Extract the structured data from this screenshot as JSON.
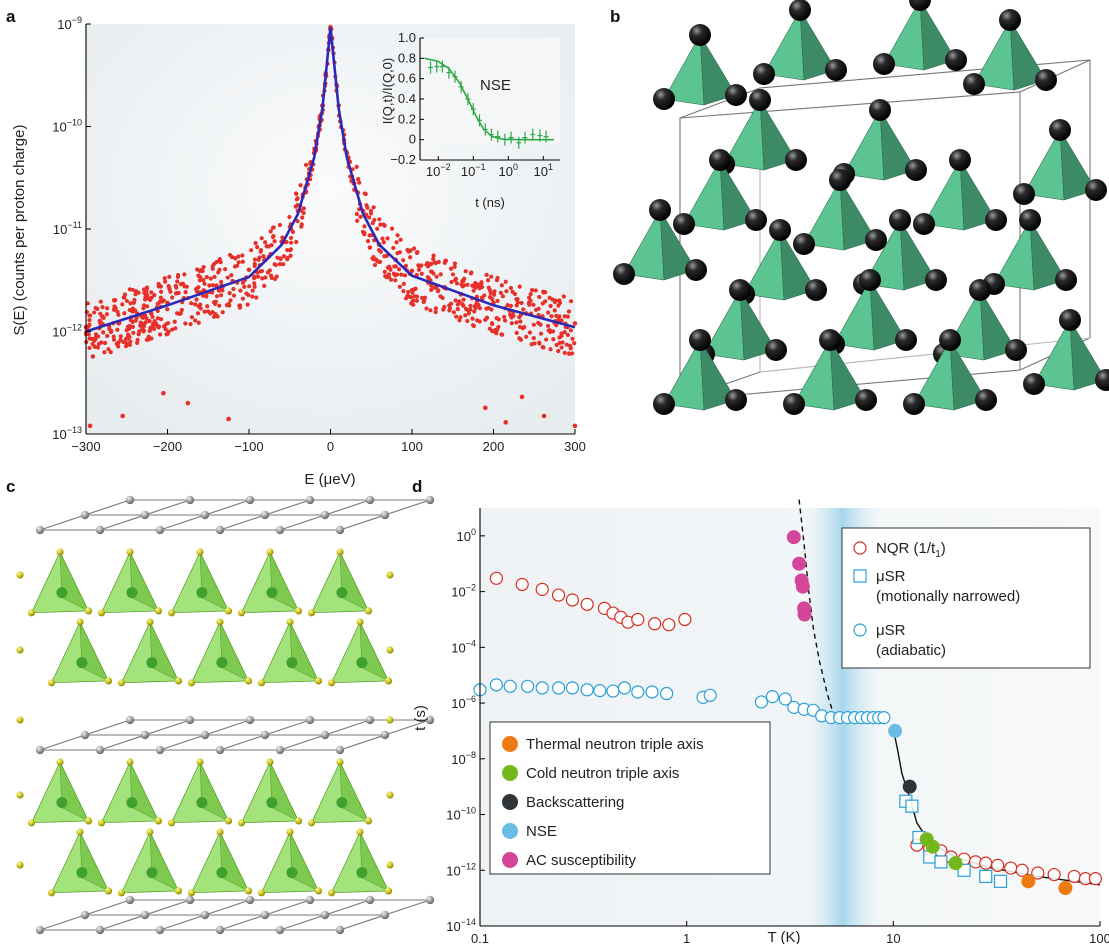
{
  "panels": {
    "a": {
      "letter": "a"
    },
    "b": {
      "letter": "b"
    },
    "c": {
      "letter": "c"
    },
    "d": {
      "letter": "d"
    }
  },
  "colors": {
    "data_red": "#e8302a",
    "fit_blue": "#2a2ab8",
    "nse_green": "#2fa84a",
    "tetra_green": "#5cc490",
    "tetra_dark": "#3d8a67",
    "tetra_lime": "#86d84f",
    "nqr_red": "#d62f1f",
    "musr_blue": "#2a9fd6",
    "thermal_orange": "#f07a12",
    "cold_green": "#72b81c",
    "backscatter_dark": "#2f3439",
    "nse_blue": "#69bde4",
    "ac_magenta": "#d4469a"
  },
  "chart_data": [
    {
      "panel": "a",
      "type": "scatter",
      "xlabel": "E (μeV)",
      "ylabel": "S(E) (counts per proton charge)",
      "xlim": [
        -300,
        300
      ],
      "ylim": [
        1e-13,
        1e-09
      ],
      "y_scale": "log",
      "x_ticks": [
        "−300",
        "−200",
        "−100",
        "0",
        "100",
        "200",
        "300"
      ],
      "y_ticks": [
        "10−13",
        "10−12",
        "10−11",
        "10−10",
        "10−9"
      ],
      "series": [
        {
          "style": "scatter",
          "points": [
            [
              -300,
              1.1e-12
            ],
            [
              -280,
              1.4e-12
            ],
            [
              -260,
              1.2e-12
            ],
            [
              -240,
              1.6e-12
            ],
            [
              -220,
              1.5e-12
            ],
            [
              -200,
              1.9e-12
            ],
            [
              -180,
              2.1e-12
            ],
            [
              -160,
              2.4e-12
            ],
            [
              -140,
              2.8e-12
            ],
            [
              -120,
              3.1e-12
            ],
            [
              -100,
              4e-12
            ],
            [
              -80,
              5e-12
            ],
            [
              -60,
              7.5e-12
            ],
            [
              -40,
              1.5e-11
            ],
            [
              -20,
              5.5e-11
            ],
            [
              -10,
              1.6e-10
            ],
            [
              0,
              9.3e-10
            ],
            [
              10,
              1.6e-10
            ],
            [
              20,
              5.5e-11
            ],
            [
              40,
              1.5e-11
            ],
            [
              60,
              7e-12
            ],
            [
              80,
              5e-12
            ],
            [
              100,
              3.9e-12
            ],
            [
              120,
              3e-12
            ],
            [
              140,
              2.7e-12
            ],
            [
              160,
              2.3e-12
            ],
            [
              180,
              2e-12
            ],
            [
              200,
              1.9e-12
            ],
            [
              220,
              1.6e-12
            ],
            [
              240,
              1.5e-12
            ],
            [
              260,
              1.4e-12
            ],
            [
              280,
              1.3e-12
            ],
            [
              300,
              1.2e-12
            ],
            [
              -255,
              1.5e-13
            ],
            [
              -205,
              2.5e-13
            ],
            [
              -175,
              2e-13
            ],
            [
              -125,
              1.4e-13
            ],
            [
              -295,
              1.2e-13
            ],
            [
              190,
              1.8e-13
            ],
            [
              215,
              1.3e-13
            ],
            [
              235,
              2.3e-13
            ],
            [
              262,
              1.5e-13
            ],
            [
              300,
              1.2e-13
            ]
          ]
        },
        {
          "style": "line",
          "points": [
            [
              -300,
              1e-12
            ],
            [
              -200,
              1.8e-12
            ],
            [
              -100,
              3.4e-12
            ],
            [
              -60,
              7e-12
            ],
            [
              -40,
              1.4e-11
            ],
            [
              -20,
              5e-11
            ],
            [
              -10,
              1.5e-10
            ],
            [
              0,
              9.3e-10
            ],
            [
              10,
              1.5e-10
            ],
            [
              20,
              5e-11
            ],
            [
              40,
              1.4e-11
            ],
            [
              60,
              7e-12
            ],
            [
              100,
              3.5e-12
            ],
            [
              200,
              1.8e-12
            ],
            [
              300,
              1.1e-12
            ]
          ]
        }
      ]
    },
    {
      "panel": "a-inset",
      "type": "scatter",
      "title": "NSE",
      "xlabel": "t (ns)",
      "ylabel": "I(Q,t)/I(Q,0)",
      "xlim": [
        0.003,
        30
      ],
      "ylim": [
        -0.2,
        1.0
      ],
      "x_scale": "log",
      "x_ticks": [
        "10−2",
        "10−1",
        "100",
        "101"
      ],
      "y_ticks": [
        "−0.2",
        "0",
        "0.2",
        "0.4",
        "0.6",
        "0.8",
        "1.0"
      ],
      "series": [
        {
          "style": "points",
          "points": [
            [
              0.006,
              0.71
            ],
            [
              0.009,
              0.72
            ],
            [
              0.013,
              0.72
            ],
            [
              0.02,
              0.66
            ],
            [
              0.03,
              0.62
            ],
            [
              0.045,
              0.52
            ],
            [
              0.07,
              0.4
            ],
            [
              0.1,
              0.3
            ],
            [
              0.15,
              0.19
            ],
            [
              0.22,
              0.1
            ],
            [
              0.33,
              0.05
            ],
            [
              0.5,
              0.03
            ],
            [
              0.8,
              0.0
            ],
            [
              1.2,
              0.02
            ],
            [
              2,
              -0.03
            ],
            [
              3,
              0.02
            ],
            [
              5,
              0.05
            ],
            [
              8,
              0.04
            ],
            [
              12,
              0.03
            ]
          ]
        },
        {
          "style": "line",
          "points": [
            [
              0.004,
              0.8
            ],
            [
              0.01,
              0.77
            ],
            [
              0.02,
              0.7
            ],
            [
              0.04,
              0.56
            ],
            [
              0.07,
              0.4
            ],
            [
              0.12,
              0.23
            ],
            [
              0.2,
              0.1
            ],
            [
              0.35,
              0.03
            ],
            [
              0.7,
              0.005
            ],
            [
              2,
              0
            ],
            [
              20,
              0
            ]
          ]
        }
      ]
    },
    {
      "panel": "d",
      "type": "scatter",
      "xlabel": "T (K)",
      "ylabel": "t (s)",
      "xlim": [
        0.1,
        100
      ],
      "ylim": [
        1e-14,
        10
      ],
      "x_scale": "log",
      "y_scale": "log",
      "x_ticks": [
        "0.1",
        "1",
        "10",
        "100"
      ],
      "y_ticks": [
        "10−14",
        "10−12",
        "10−10",
        "10−8",
        "10−6",
        "10−4",
        "10−2",
        "100"
      ],
      "series": [
        {
          "name": "NQR (1/t1)",
          "marker": "circle-open",
          "color": "#d62f1f",
          "points": [
            [
              0.12,
              0.03
            ],
            [
              0.16,
              0.018
            ],
            [
              0.2,
              0.012
            ],
            [
              0.24,
              0.0075
            ],
            [
              0.28,
              0.005
            ],
            [
              0.33,
              0.0035
            ],
            [
              0.4,
              0.0025
            ],
            [
              0.44,
              0.0017
            ],
            [
              0.48,
              0.0012
            ],
            [
              0.52,
              0.0008
            ],
            [
              0.58,
              0.001
            ],
            [
              0.7,
              0.0007
            ],
            [
              0.82,
              0.00065
            ],
            [
              0.98,
              0.001
            ],
            [
              13,
              8e-12
            ],
            [
              15,
              6e-12
            ],
            [
              17,
              5e-12
            ],
            [
              19,
              3e-12
            ],
            [
              22,
              2.5e-12
            ],
            [
              25,
              2e-12
            ],
            [
              28,
              1.8e-12
            ],
            [
              32,
              1.5e-12
            ],
            [
              37,
              1.2e-12
            ],
            [
              42,
              1e-12
            ],
            [
              50,
              8e-13
            ],
            [
              60,
              7e-13
            ],
            [
              75,
              6e-13
            ],
            [
              85,
              5e-13
            ],
            [
              95,
              5e-13
            ]
          ]
        },
        {
          "name": "μSR (motionally narrowed)",
          "marker": "square-open",
          "color": "#2a9fd6",
          "points": [
            [
              11.5,
              3e-10
            ],
            [
              12.3,
              2e-10
            ],
            [
              13.3,
              1.5e-11
            ],
            [
              15,
              3e-12
            ],
            [
              17,
              2e-12
            ],
            [
              22,
              1e-12
            ],
            [
              28,
              6e-13
            ],
            [
              33,
              4e-13
            ]
          ]
        },
        {
          "name": "μSR (adiabatic)",
          "marker": "circle-open",
          "color": "#2a9fd6",
          "points": [
            [
              0.1,
              3e-06
            ],
            [
              0.12,
              4.5e-06
            ],
            [
              0.14,
              4e-06
            ],
            [
              0.17,
              4e-06
            ],
            [
              0.2,
              3.5e-06
            ],
            [
              0.24,
              3.5e-06
            ],
            [
              0.28,
              3.5e-06
            ],
            [
              0.33,
              3e-06
            ],
            [
              0.38,
              2.8e-06
            ],
            [
              0.44,
              2.7e-06
            ],
            [
              0.5,
              3.5e-06
            ],
            [
              0.58,
              2.5e-06
            ],
            [
              0.68,
              2.5e-06
            ],
            [
              0.8,
              2.2e-06
            ],
            [
              1.2,
              1.6e-06
            ],
            [
              1.3,
              1.9e-06
            ],
            [
              2.3,
              1.1e-06
            ],
            [
              2.6,
              1.7e-06
            ],
            [
              3.0,
              1.4e-06
            ],
            [
              3.3,
              7e-07
            ],
            [
              3.7,
              6e-07
            ],
            [
              4.1,
              5.5e-07
            ],
            [
              4.5,
              3.5e-07
            ],
            [
              5.0,
              3e-07
            ],
            [
              5.5,
              3e-07
            ],
            [
              6.0,
              3e-07
            ],
            [
              6.5,
              3e-07
            ],
            [
              7.0,
              3e-07
            ],
            [
              7.5,
              3e-07
            ],
            [
              8.0,
              3e-07
            ],
            [
              8.5,
              3e-07
            ],
            [
              9.0,
              3e-07
            ]
          ]
        },
        {
          "name": "Thermal neutron triple axis",
          "marker": "circle-filled",
          "color": "#f07a12",
          "points": [
            [
              45,
              4e-13
            ],
            [
              68,
              2.3e-13
            ]
          ]
        },
        {
          "name": "Cold neutron triple axis",
          "marker": "circle-filled",
          "color": "#72b81c",
          "points": [
            [
              14.5,
              1.3e-11
            ],
            [
              15.5,
              7e-12
            ],
            [
              20,
              1.8e-12
            ]
          ]
        },
        {
          "name": "Backscattering",
          "marker": "circle-filled",
          "color": "#2f3439",
          "points": [
            [
              12,
              1e-09
            ]
          ]
        },
        {
          "name": "NSE",
          "marker": "circle-filled",
          "color": "#69bde4",
          "points": [
            [
              10.2,
              1e-07
            ]
          ]
        },
        {
          "name": "AC susceptibility",
          "marker": "circle-filled",
          "color": "#d4469a",
          "points": [
            [
              3.3,
              0.9
            ],
            [
              3.5,
              0.1
            ],
            [
              3.6,
              0.025
            ],
            [
              3.65,
              0.015
            ],
            [
              3.7,
              0.0025
            ],
            [
              3.72,
              0.0015
            ]
          ]
        }
      ]
    }
  ]
}
